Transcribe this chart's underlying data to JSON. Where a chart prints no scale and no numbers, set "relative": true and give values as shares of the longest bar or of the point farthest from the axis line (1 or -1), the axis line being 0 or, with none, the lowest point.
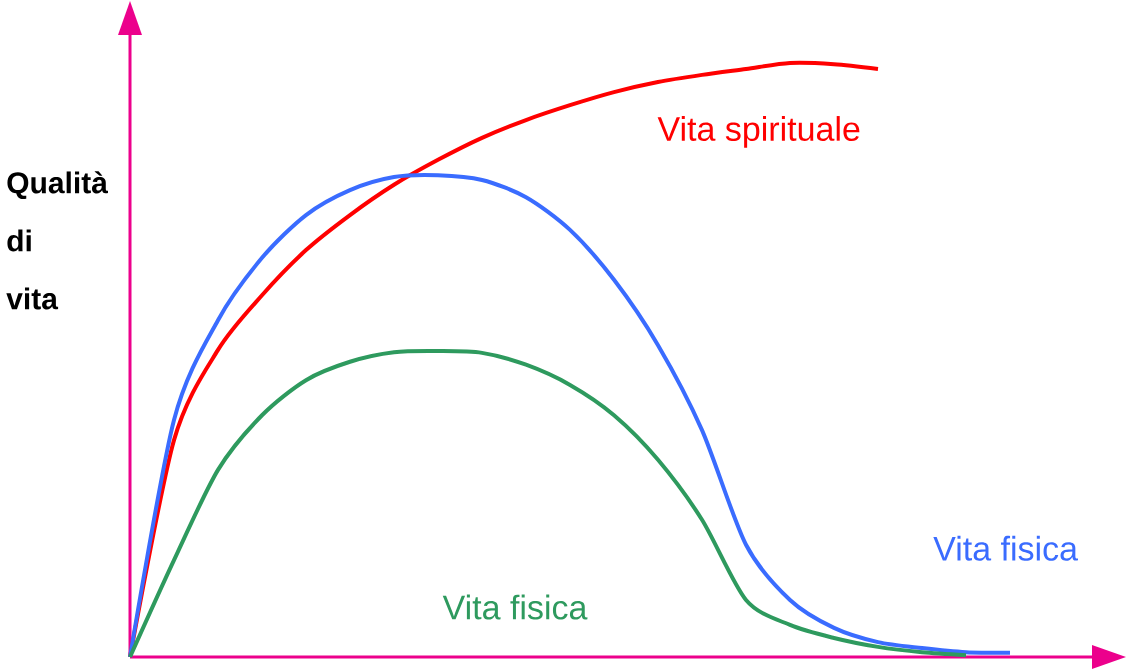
{
  "chart_data": {
    "type": "line",
    "relative": true,
    "ylabel": "Qualità di vita",
    "categories": [
      null,
      null,
      null,
      null,
      null,
      null,
      null,
      null,
      null,
      null,
      null,
      null,
      null,
      null,
      null,
      null,
      null,
      null,
      null,
      null,
      null
    ],
    "series": [
      {
        "name": "Vita spirituale",
        "color": "#ff0000",
        "values": [
          0,
          0.365,
          0.517,
          0.609,
          0.685,
          0.744,
          0.795,
          0.837,
          0.874,
          0.904,
          0.929,
          0.951,
          0.968,
          0.98,
          0.99,
          1.0,
          0.998,
          0.99,
          null,
          null,
          null
        ]
      },
      {
        "name": "Vita fisica",
        "color": "#3a6cff",
        "values": [
          0,
          0.399,
          0.567,
          0.672,
          0.744,
          0.786,
          0.808,
          0.811,
          0.803,
          0.774,
          0.719,
          0.635,
          0.525,
          0.382,
          0.189,
          0.096,
          0.049,
          0.025,
          0.015,
          0.008,
          0.007
        ]
      },
      {
        "name": "Vita fisica",
        "color": "#2e9a5e",
        "values": [
          0,
          0.163,
          0.315,
          0.407,
          0.466,
          0.497,
          0.513,
          0.515,
          0.512,
          0.492,
          0.458,
          0.407,
          0.332,
          0.231,
          0.096,
          0.054,
          0.032,
          0.017,
          0.008,
          0.003,
          null
        ]
      }
    ]
  }
}
